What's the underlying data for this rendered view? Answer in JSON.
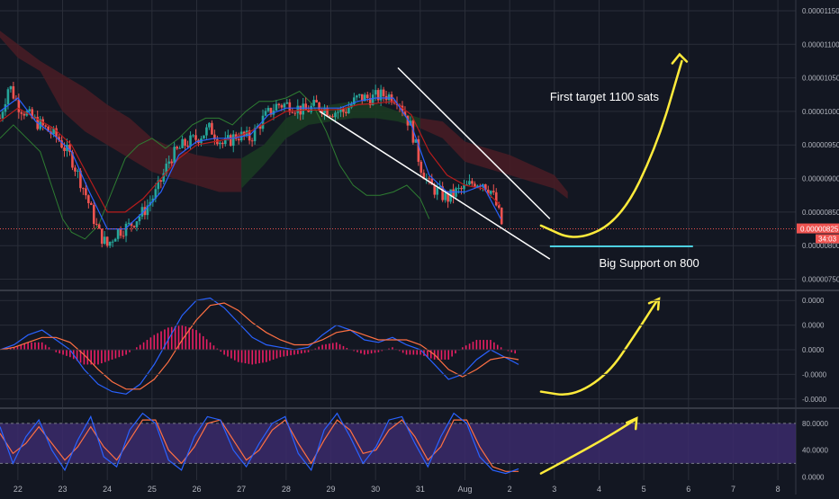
{
  "colors": {
    "background": "#131722",
    "grid": "#2a2e39",
    "candle_up": "#26a69a",
    "candle_down": "#ef5350",
    "tenkan": "#2962ff",
    "kijun": "#b71c1c",
    "chikou": "#2e7d32",
    "cloud_bull": "#1b3a22",
    "cloud_bear": "#4a1c24",
    "current_price_line": "#ef5350",
    "support_line": "#4dd0e1",
    "arrow": "#ffeb3b",
    "wedge": "#ffffff",
    "macd_line": "#2962ff",
    "signal_line": "#ff7043",
    "histogram": "#e91e63",
    "stoch_fill": "#3b2a6b",
    "axis_text": "#b2b5be"
  },
  "chart_data": [
    {
      "type": "candlestick",
      "panel": "price",
      "x_tick_labels": [
        "22",
        "23",
        "24",
        "25",
        "26",
        "27",
        "28",
        "29",
        "30",
        "31",
        "Aug",
        "2",
        "3",
        "4",
        "5",
        "6",
        "7",
        "8"
      ],
      "y_tick_labels": [
        "0.00001150",
        "0.00001100",
        "0.00001050",
        "0.00001000",
        "0.00000950",
        "0.00000900",
        "0.00000850",
        "0.00000800",
        "0.00000750"
      ],
      "y_ticks": [
        1150,
        1100,
        1050,
        1000,
        950,
        900,
        850,
        800,
        750
      ],
      "ylim": [
        736,
        1166
      ],
      "current_price": 825,
      "current_price_label": "0.00000825",
      "countdown_label": "34:03",
      "support_level": 799,
      "price_path": [
        [
          21.6,
          990
        ],
        [
          21.8,
          1040
        ],
        [
          22.0,
          1010
        ],
        [
          22.3,
          990
        ],
        [
          22.6,
          975
        ],
        [
          22.9,
          960
        ],
        [
          23.2,
          930
        ],
        [
          23.5,
          880
        ],
        [
          23.8,
          820
        ],
        [
          24.0,
          800
        ],
        [
          24.2,
          820
        ],
        [
          24.5,
          830
        ],
        [
          24.8,
          850
        ],
        [
          25.1,
          880
        ],
        [
          25.4,
          930
        ],
        [
          25.7,
          950
        ],
        [
          26.0,
          960
        ],
        [
          26.3,
          975
        ],
        [
          26.6,
          950
        ],
        [
          26.9,
          965
        ],
        [
          27.2,
          960
        ],
        [
          27.5,
          990
        ],
        [
          27.8,
          1010
        ],
        [
          28.1,
          1010
        ],
        [
          28.4,
          1000
        ],
        [
          28.7,
          1010
        ],
        [
          29.0,
          1000
        ],
        [
          29.3,
          1000
        ],
        [
          29.6,
          1020
        ],
        [
          29.9,
          1020
        ],
        [
          30.2,
          1025
        ],
        [
          30.5,
          1020
        ],
        [
          30.8,
          975
        ],
        [
          31.0,
          920
        ],
        [
          31.2,
          890
        ],
        [
          31.4,
          880
        ],
        [
          31.6,
          870
        ],
        [
          31.8,
          880
        ],
        [
          32.0,
          885
        ],
        [
          32.2,
          895
        ],
        [
          32.4,
          895
        ],
        [
          32.6,
          880
        ],
        [
          32.75,
          850
        ],
        [
          32.85,
          825
        ]
      ],
      "tenkan_path": [
        [
          21.6,
          1000
        ],
        [
          22.0,
          1020
        ],
        [
          22.4,
          985
        ],
        [
          22.8,
          965
        ],
        [
          23.2,
          940
        ],
        [
          23.6,
          880
        ],
        [
          24.0,
          825
        ],
        [
          24.4,
          825
        ],
        [
          24.8,
          850
        ],
        [
          25.2,
          880
        ],
        [
          25.6,
          935
        ],
        [
          26.0,
          955
        ],
        [
          26.4,
          960
        ],
        [
          26.8,
          960
        ],
        [
          27.2,
          965
        ],
        [
          27.6,
          995
        ],
        [
          28.0,
          1005
        ],
        [
          28.4,
          1005
        ],
        [
          28.8,
          1005
        ],
        [
          29.2,
          1005
        ],
        [
          29.6,
          1015
        ],
        [
          30.0,
          1020
        ],
        [
          30.4,
          1020
        ],
        [
          30.8,
          980
        ],
        [
          31.2,
          905
        ],
        [
          31.6,
          880
        ],
        [
          32.0,
          880
        ],
        [
          32.4,
          890
        ],
        [
          32.8,
          840
        ]
      ],
      "kijun_path": [
        [
          21.6,
          985
        ],
        [
          22.0,
          1005
        ],
        [
          22.4,
          990
        ],
        [
          22.8,
          975
        ],
        [
          23.2,
          950
        ],
        [
          23.6,
          900
        ],
        [
          24.0,
          850
        ],
        [
          24.4,
          850
        ],
        [
          24.8,
          870
        ],
        [
          25.2,
          900
        ],
        [
          25.6,
          930
        ],
        [
          26.0,
          950
        ],
        [
          26.4,
          955
        ],
        [
          26.8,
          960
        ],
        [
          27.2,
          970
        ],
        [
          27.6,
          985
        ],
        [
          28.0,
          1000
        ],
        [
          28.4,
          1002
        ],
        [
          28.8,
          1002
        ],
        [
          29.2,
          1003
        ],
        [
          29.6,
          1010
        ],
        [
          30.0,
          1012
        ],
        [
          30.4,
          1015
        ],
        [
          30.8,
          995
        ],
        [
          31.2,
          940
        ],
        [
          31.6,
          905
        ],
        [
          32.0,
          890
        ],
        [
          32.4,
          885
        ],
        [
          32.8,
          860
        ]
      ],
      "chikou_path": [
        [
          21.6,
          960
        ],
        [
          21.9,
          980
        ],
        [
          22.2,
          960
        ],
        [
          22.5,
          940
        ],
        [
          22.8,
          880
        ],
        [
          23.0,
          840
        ],
        [
          23.2,
          820
        ],
        [
          23.5,
          810
        ],
        [
          23.8,
          830
        ],
        [
          24.1,
          880
        ],
        [
          24.4,
          930
        ],
        [
          24.7,
          950
        ],
        [
          25.0,
          960
        ],
        [
          25.3,
          945
        ],
        [
          25.6,
          960
        ],
        [
          25.9,
          980
        ],
        [
          26.2,
          990
        ],
        [
          26.5,
          990
        ],
        [
          26.8,
          980
        ],
        [
          27.1,
          1000
        ],
        [
          27.4,
          1015
        ],
        [
          27.7,
          1015
        ],
        [
          28.0,
          1020
        ],
        [
          28.3,
          1030
        ],
        [
          28.6,
          1010
        ],
        [
          28.9,
          970
        ],
        [
          29.2,
          920
        ],
        [
          29.5,
          890
        ],
        [
          29.8,
          875
        ],
        [
          30.1,
          875
        ],
        [
          30.4,
          880
        ],
        [
          30.7,
          890
        ],
        [
          31.0,
          870
        ],
        [
          31.2,
          840
        ]
      ],
      "cloud_bear_poly": [
        [
          21.6,
          1110
        ],
        [
          22.0,
          1080
        ],
        [
          22.5,
          1060
        ],
        [
          23.0,
          1000
        ],
        [
          23.5,
          970
        ],
        [
          24.0,
          950
        ],
        [
          24.5,
          930
        ],
        [
          25.0,
          910
        ],
        [
          25.5,
          900
        ],
        [
          26.0,
          890
        ],
        [
          26.5,
          880
        ],
        [
          27.0,
          880
        ],
        [
          27.0,
          930
        ],
        [
          26.5,
          930
        ],
        [
          26.0,
          935
        ],
        [
          25.5,
          945
        ],
        [
          25.0,
          960
        ],
        [
          24.5,
          990
        ],
        [
          24.0,
          1010
        ],
        [
          23.5,
          1035
        ],
        [
          23.0,
          1055
        ],
        [
          22.5,
          1075
        ],
        [
          22.0,
          1100
        ],
        [
          21.6,
          1120
        ]
      ],
      "cloud_bull_poly": [
        [
          27.0,
          930
        ],
        [
          27.5,
          950
        ],
        [
          28.0,
          990
        ],
        [
          28.5,
          1005
        ],
        [
          29.0,
          1010
        ],
        [
          29.5,
          1015
        ],
        [
          30.0,
          1012
        ],
        [
          30.5,
          1000
        ],
        [
          31.0,
          990
        ],
        [
          31.0,
          975
        ],
        [
          30.5,
          985
        ],
        [
          30.0,
          990
        ],
        [
          29.5,
          990
        ],
        [
          29.0,
          985
        ],
        [
          28.5,
          980
        ],
        [
          28.0,
          960
        ],
        [
          27.5,
          920
        ],
        [
          27.0,
          885
        ]
      ],
      "cloud_bear2_poly": [
        [
          31.0,
          990
        ],
        [
          31.5,
          985
        ],
        [
          32.0,
          955
        ],
        [
          32.5,
          945
        ],
        [
          33.0,
          935
        ],
        [
          33.5,
          920
        ],
        [
          34.0,
          905
        ],
        [
          34.3,
          880
        ],
        [
          34.3,
          870
        ],
        [
          34.0,
          885
        ],
        [
          33.5,
          895
        ],
        [
          33.0,
          905
        ],
        [
          32.5,
          915
        ],
        [
          32.0,
          925
        ],
        [
          31.5,
          960
        ],
        [
          31.0,
          975
        ]
      ],
      "wedge_lines": [
        {
          "from": [
            28.75,
            1000
          ],
          "to": [
            33.9,
            780
          ]
        },
        {
          "from": [
            30.5,
            1065
          ],
          "to": [
            33.9,
            840
          ]
        }
      ],
      "annotations": [
        {
          "text": "First target 1100 sats",
          "x": 33.9,
          "y": 1016
        },
        {
          "text": "Big Support on 800",
          "x": 35.0,
          "y": 768
        }
      ],
      "arrow_path": [
        [
          33.7,
          830
        ],
        [
          34.5,
          806
        ],
        [
          35.5,
          840
        ],
        [
          36.3,
          950
        ],
        [
          36.85,
          1075
        ]
      ],
      "arrow_head": [
        36.8,
        1085
      ]
    },
    {
      "type": "macd",
      "panel": "macd",
      "y_tick_labels": [
        "0.0000",
        "0.0000",
        "0.0000",
        "-0.0000",
        "-0.0000"
      ],
      "ylim": [
        -1.15,
        1.15
      ],
      "macd": [
        0.0,
        0.1,
        0.3,
        0.4,
        0.2,
        0.0,
        -0.4,
        -0.7,
        -0.85,
        -0.9,
        -0.7,
        -0.3,
        0.2,
        0.7,
        1.0,
        1.05,
        0.85,
        0.55,
        0.25,
        0.1,
        0.05,
        0.0,
        0.05,
        0.3,
        0.5,
        0.4,
        0.2,
        0.15,
        0.25,
        0.1,
        0.0,
        -0.3,
        -0.6,
        -0.5,
        -0.2,
        0.0,
        -0.15,
        -0.3
      ],
      "signal": [
        0.0,
        0.05,
        0.15,
        0.25,
        0.25,
        0.15,
        -0.1,
        -0.4,
        -0.65,
        -0.8,
        -0.8,
        -0.6,
        -0.25,
        0.2,
        0.6,
        0.9,
        0.95,
        0.8,
        0.55,
        0.35,
        0.2,
        0.1,
        0.1,
        0.2,
        0.35,
        0.4,
        0.3,
        0.2,
        0.2,
        0.2,
        0.1,
        -0.1,
        -0.4,
        -0.55,
        -0.4,
        -0.2,
        -0.15,
        -0.2
      ],
      "histogram": [
        0.0,
        0.05,
        0.15,
        0.15,
        -0.05,
        -0.15,
        -0.3,
        -0.3,
        -0.2,
        -0.1,
        0.1,
        0.3,
        0.45,
        0.5,
        0.4,
        0.15,
        -0.1,
        -0.25,
        -0.3,
        -0.25,
        -0.15,
        -0.1,
        -0.05,
        0.1,
        0.15,
        0.0,
        -0.1,
        -0.05,
        0.05,
        -0.1,
        -0.1,
        -0.2,
        -0.2,
        0.05,
        0.2,
        0.2,
        0.0,
        -0.1
      ],
      "arrow_path": [
        [
          -0.4,
          -0.9
        ]
      ],
      "arrow_path_dates": [
        [
          33.7,
          -0.85
        ],
        [
          34.4,
          -0.95
        ],
        [
          35.2,
          -0.5
        ],
        [
          35.8,
          0.3
        ],
        [
          36.3,
          1.0
        ]
      ]
    },
    {
      "type": "stochastic",
      "panel": "stoch",
      "y_tick_labels": [
        "80.0000",
        "40.0000",
        "0.0000"
      ],
      "ylim": [
        -5,
        100
      ],
      "band": [
        20,
        80
      ],
      "k": [
        75,
        20,
        60,
        85,
        40,
        10,
        55,
        90,
        30,
        15,
        70,
        95,
        80,
        25,
        10,
        60,
        90,
        85,
        40,
        15,
        50,
        80,
        90,
        35,
        10,
        70,
        95,
        60,
        20,
        45,
        85,
        90,
        50,
        15,
        60,
        95,
        80,
        30,
        10,
        5,
        12
      ],
      "d": [
        65,
        35,
        50,
        75,
        50,
        25,
        45,
        75,
        45,
        25,
        55,
        85,
        85,
        40,
        20,
        45,
        80,
        85,
        55,
        25,
        40,
        70,
        85,
        50,
        20,
        55,
        85,
        70,
        35,
        40,
        70,
        85,
        60,
        25,
        45,
        85,
        85,
        45,
        15,
        8,
        8
      ],
      "arrow_path": [
        [
          33.7,
          5
        ],
        [
          34.4,
          30
        ],
        [
          35.2,
          60
        ],
        [
          35.8,
          85
        ]
      ]
    }
  ]
}
